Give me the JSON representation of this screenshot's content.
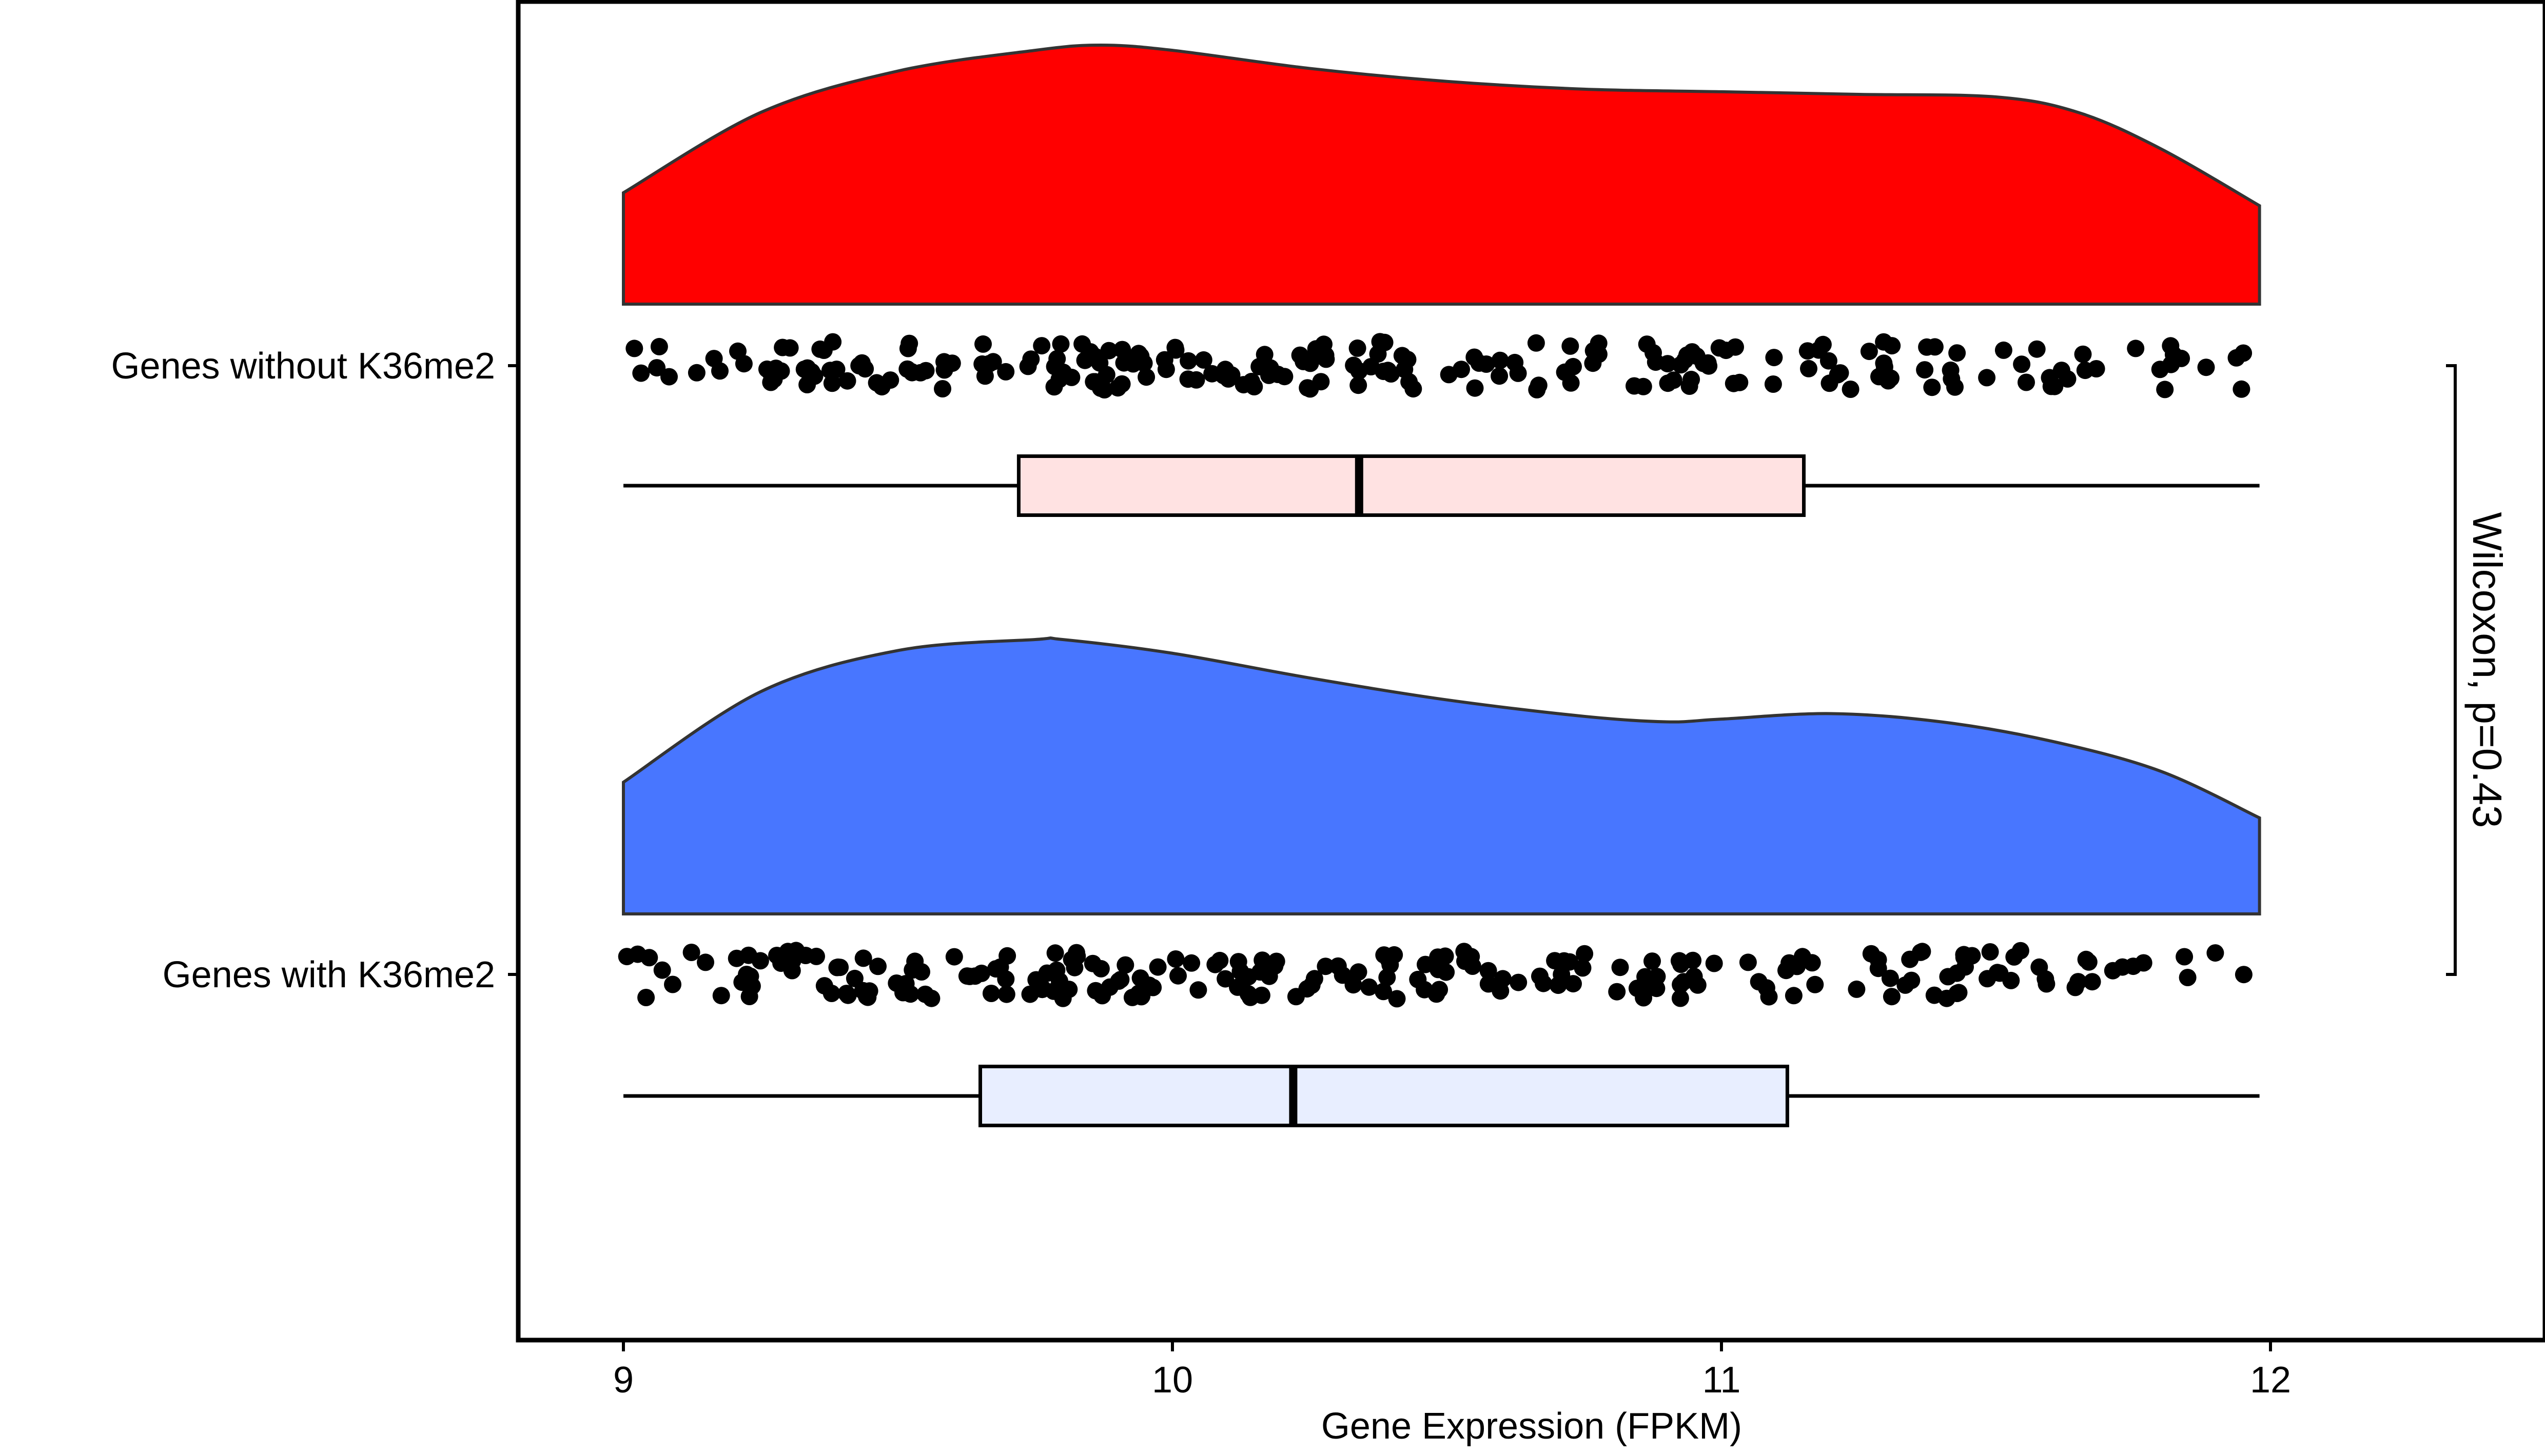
{
  "chart_data": {
    "type": "raincloud",
    "title": "",
    "xlabel": "Gene Expression (FPKM)",
    "ylabel": "",
    "xlim": [
      8.8,
      12.5
    ],
    "x_ticks": [
      9,
      10,
      11,
      12
    ],
    "x_tick_labels": [
      "9",
      "10",
      "11",
      "12"
    ],
    "grid": false,
    "legend": "none",
    "groups": [
      {
        "name": "Genes without K36me2",
        "fill": "#ff0000",
        "box_fill": "#ffe2e2",
        "density": {
          "x": [
            9.0,
            9.25,
            9.5,
            9.75,
            9.87,
            10.0,
            10.25,
            10.5,
            10.75,
            11.0,
            11.25,
            11.5,
            11.65,
            11.8,
            11.98
          ],
          "y": [
            0.43,
            0.74,
            0.9,
            0.98,
            1.0,
            0.98,
            0.91,
            0.86,
            0.83,
            0.82,
            0.81,
            0.8,
            0.74,
            0.6,
            0.38
          ]
        },
        "box": {
          "min": 9.0,
          "q1": 9.72,
          "median": 10.34,
          "q3": 11.15,
          "max": 11.98
        },
        "n_points": 230
      },
      {
        "name": "Genes with K36me2",
        "fill": "#4876ff",
        "box_fill": "#e8eeff",
        "density": {
          "x": [
            9.0,
            9.25,
            9.5,
            9.75,
            9.8,
            10.0,
            10.25,
            10.5,
            10.75,
            10.9,
            11.0,
            11.2,
            11.4,
            11.6,
            11.8,
            11.98
          ],
          "y": [
            0.48,
            0.81,
            0.96,
            1.0,
            1.0,
            0.95,
            0.86,
            0.78,
            0.72,
            0.7,
            0.71,
            0.73,
            0.7,
            0.63,
            0.52,
            0.35
          ]
        },
        "box": {
          "min": 9.0,
          "q1": 9.65,
          "median": 10.22,
          "q3": 11.12,
          "max": 11.98
        },
        "n_points": 230
      }
    ],
    "annotation": {
      "text": "Wilcoxon, p=0.43"
    }
  }
}
